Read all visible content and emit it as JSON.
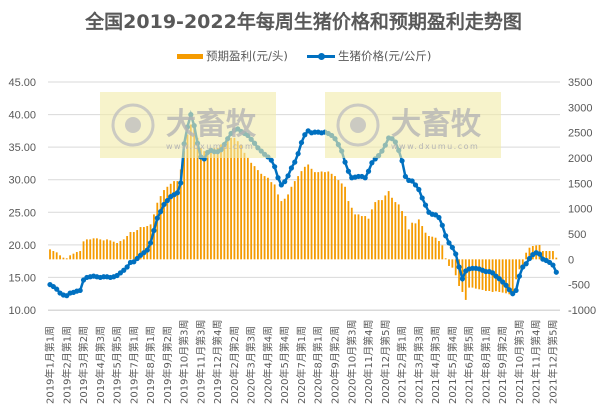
{
  "chart_data": {
    "type": "bar+line",
    "title": "全国2019-2022年每周生猪价格和预期盈利走势图",
    "legend_position": "top",
    "grid": true,
    "x_tick_labels": [
      "2019年1月第1周",
      "2019年2月第1周",
      "2019年3月第2周",
      "2019年4月第3周",
      "2019年5月第5周",
      "2019年7月第1周",
      "2019年8月第1周",
      "2019年9月第2周",
      "2019年10月第3周",
      "2019年11月第3周",
      "2019年12月第4周",
      "2020年2月第2周",
      "2020年3月第3周",
      "2020年4月第4周",
      "2020年5月第4周",
      "2020年7月第1周",
      "2020年8月第1周",
      "2020年9月第2周",
      "2020年10月第3周",
      "2020年11月第4周",
      "2020年12月第5周",
      "2021年2月第1周",
      "2021年3月第3周",
      "2021年4月第3周",
      "2021年5月第4周",
      "2021年6月第5周",
      "2021年8月第1周",
      "2021年9月第2周",
      "2021年10月第3周",
      "2021年11月第4周",
      "2021年12月第5周"
    ],
    "x_tick_every": 5,
    "left_axis": {
      "range": [
        10,
        45
      ],
      "step": 5,
      "tick_labels": [
        "10.00",
        "15.00",
        "20.00",
        "25.00",
        "30.00",
        "35.00",
        "40.00",
        "45.00"
      ]
    },
    "right_axis": {
      "range": [
        -1000,
        3500
      ],
      "step": 500,
      "tick_labels": [
        "-1000",
        "-500",
        "0",
        "500",
        "1000",
        "1500",
        "2000",
        "2500",
        "3000",
        "3500"
      ]
    },
    "series": [
      {
        "name": "预期盈利(元/头)",
        "type": "bar",
        "axis": "right",
        "color": "#F59B00",
        "values": [
          197,
          164,
          138,
          79,
          33,
          20,
          79,
          112,
          145,
          164,
          355,
          394,
          394,
          414,
          414,
          394,
          374,
          394,
          374,
          348,
          322,
          361,
          394,
          460,
          539,
          539,
          578,
          637,
          637,
          657,
          690,
          887,
          1117,
          1248,
          1367,
          1432,
          1491,
          1544,
          1544,
          1774,
          2135,
          2464,
          2661,
          2595,
          2398,
          2200,
          2135,
          2135,
          2200,
          2200,
          2200,
          2267,
          2300,
          2332,
          2398,
          2398,
          2332,
          2267,
          2102,
          2004,
          1905,
          1840,
          1761,
          1688,
          1643,
          1610,
          1524,
          1478,
          1281,
          1150,
          1196,
          1281,
          1432,
          1544,
          1643,
          1741,
          1826,
          1872,
          1787,
          1721,
          1721,
          1734,
          1721,
          1734,
          1688,
          1643,
          1564,
          1498,
          1432,
          1150,
          1018,
          887,
          887,
          854,
          854,
          802,
          986,
          1130,
          1169,
          1169,
          1261,
          1347,
          1215,
          1130,
          1084,
          953,
          854,
          591,
          723,
          710,
          788,
          657,
          526,
          460,
          447,
          427,
          361,
          276,
          20,
          -131,
          -164,
          -315,
          -526,
          -644,
          -801,
          -558,
          -558,
          -578,
          -591,
          -604,
          -624,
          -625,
          -644,
          -630,
          -644,
          -657,
          -670,
          -690,
          -723,
          -394,
          -197,
          -131,
          131,
          230,
          263,
          276,
          283,
          164,
          164,
          164,
          164,
          33
        ]
      },
      {
        "name": "生猪价格(元/公斤)",
        "type": "line",
        "axis": "left",
        "color": "#0070C0",
        "values": [
          13.9,
          13.6,
          13.2,
          12.6,
          12.3,
          12.2,
          12.6,
          12.7,
          12.9,
          13.0,
          14.6,
          15.0,
          15.1,
          15.2,
          15.1,
          15.0,
          15.1,
          15.1,
          15.0,
          15.1,
          15.3,
          15.7,
          16.1,
          16.6,
          17.3,
          17.4,
          17.9,
          18.4,
          18.8,
          19.2,
          20.3,
          22.2,
          24.1,
          25.1,
          26.2,
          26.8,
          27.4,
          27.7,
          28.0,
          29.5,
          35.5,
          38.1,
          40.0,
          38.3,
          35.6,
          33.5,
          33.2,
          34.2,
          34.5,
          34.3,
          34.3,
          34.6,
          35.4,
          36.3,
          37.1,
          37.6,
          37.8,
          37.4,
          37.1,
          36.8,
          36.2,
          35.6,
          34.9,
          34.4,
          33.9,
          33.5,
          33.0,
          32.0,
          30.3,
          29.2,
          29.7,
          30.6,
          31.8,
          32.7,
          34.0,
          35.7,
          36.9,
          37.5,
          37.2,
          37.3,
          37.3,
          37.2,
          37.3,
          37.1,
          36.8,
          36.3,
          35.4,
          34.4,
          32.7,
          31.3,
          30.3,
          30.4,
          30.5,
          30.5,
          30.3,
          31.3,
          32.6,
          33.2,
          33.7,
          34.4,
          35.3,
          36.4,
          36.3,
          35.8,
          34.5,
          32.9,
          30.5,
          29.9,
          29.8,
          29.2,
          28.5,
          27.2,
          26.1,
          25.0,
          24.7,
          24.6,
          24.2,
          23.0,
          21.4,
          20.3,
          19.6,
          18.6,
          16.6,
          14.8,
          16.0,
          16.3,
          16.4,
          16.4,
          16.3,
          16.1,
          15.9,
          15.9,
          15.7,
          15.2,
          14.8,
          14.3,
          13.8,
          13.1,
          12.5,
          13.0,
          15.2,
          16.6,
          17.1,
          17.9,
          18.5,
          18.8,
          18.6,
          17.8,
          17.6,
          17.3,
          16.9,
          15.8
        ]
      }
    ]
  },
  "watermark": {
    "brand": "大畜牧",
    "site": "www.dxumu.com",
    "color": "#F2EBA8"
  },
  "gridline_color": "#D9D9D9"
}
